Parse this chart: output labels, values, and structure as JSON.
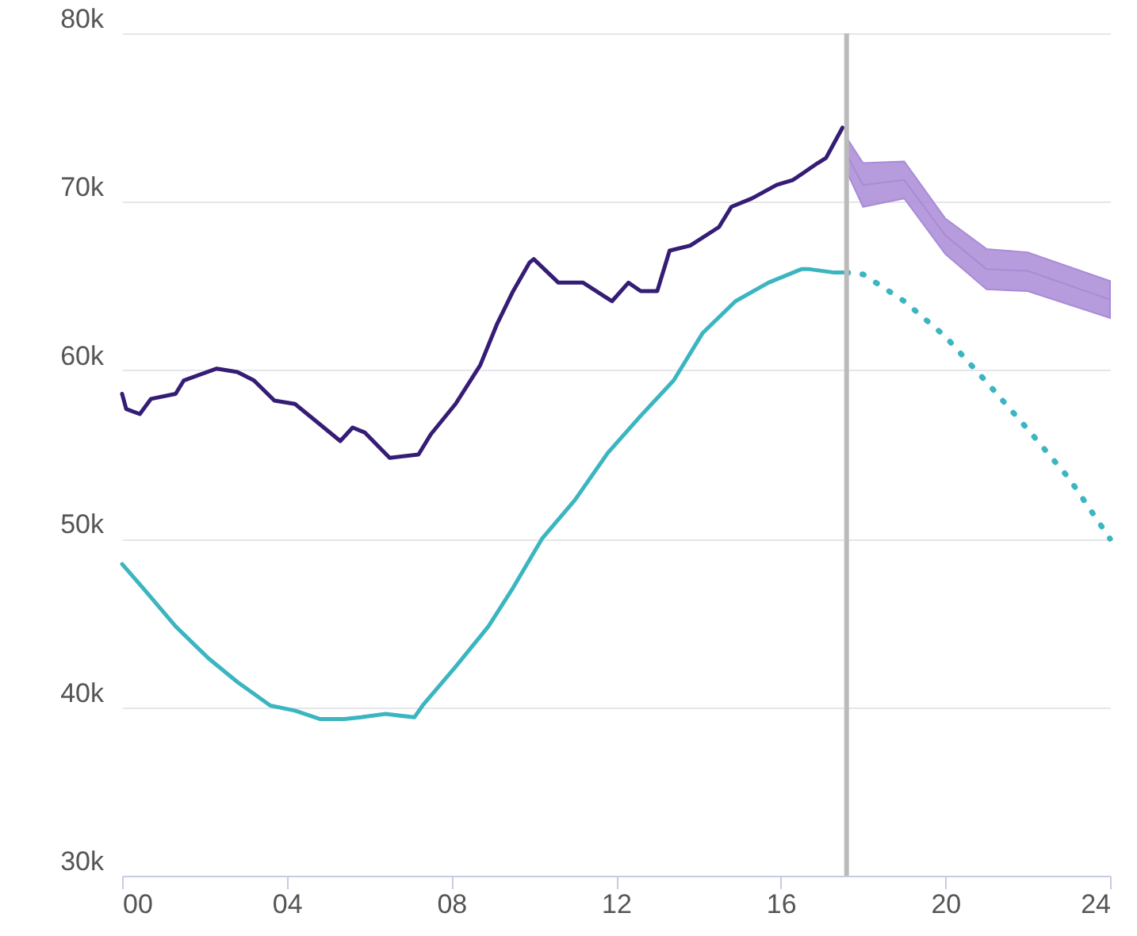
{
  "chart_data": {
    "type": "line",
    "xlim": [
      0,
      24
    ],
    "xticks": [
      {
        "value": 0,
        "label": "00"
      },
      {
        "value": 4,
        "label": "04"
      },
      {
        "value": 8,
        "label": "08"
      },
      {
        "value": 12,
        "label": "12"
      },
      {
        "value": 16,
        "label": "16"
      },
      {
        "value": 20,
        "label": "20"
      },
      {
        "value": 24,
        "label": "24"
      }
    ],
    "ylim": [
      30000,
      80000
    ],
    "yticks": [
      {
        "value": 30000,
        "label": "30k"
      },
      {
        "value": 40000,
        "label": "40k"
      },
      {
        "value": 50000,
        "label": "50k"
      },
      {
        "value": 60000,
        "label": "60k"
      },
      {
        "value": 70000,
        "label": "70k"
      },
      {
        "value": 80000,
        "label": "80k"
      }
    ],
    "grid": "y",
    "marker": "none",
    "ref_lines": [
      {
        "axis": "x",
        "value": 17.6,
        "color": "#bbbbbb"
      }
    ],
    "series": [
      {
        "color": "#351c75",
        "line_style": "solid",
        "x": [
          0,
          0.1,
          0.43,
          0.7,
          1.3,
          1.5,
          2.3,
          2.8,
          3.2,
          3.7,
          4.2,
          4.6,
          5.3,
          5.6,
          5.9,
          6.5,
          7.2,
          7.5,
          8.1,
          8.7,
          9.1,
          9.5,
          9.9,
          10.0,
          10.6,
          11.2,
          11.9,
          12.3,
          12.6,
          13.0,
          13.3,
          13.8,
          14.5,
          14.8,
          15.3,
          15.9,
          16.3,
          16.9,
          17.1,
          17.3,
          17.5
        ],
        "values": [
          58600,
          57700,
          57400,
          58300,
          58600,
          59400,
          60100,
          59900,
          59400,
          58200,
          58000,
          57200,
          55800,
          56600,
          56300,
          54800,
          55000,
          56200,
          58000,
          60300,
          62700,
          64700,
          66400,
          66600,
          65200,
          65200,
          64100,
          65200,
          64700,
          64700,
          67100,
          67400,
          68500,
          69700,
          70200,
          71000,
          71300,
          72300,
          72600,
          73500,
          74400
        ]
      },
      {
        "color": "#3bb5c0",
        "line_style": "solid",
        "x": [
          0,
          0.5,
          1.3,
          2.1,
          2.8,
          3.6,
          4.2,
          4.8,
          5.4,
          5.8,
          6.4,
          7.1,
          7.3,
          8.1,
          8.9,
          9.5,
          10.2,
          11.0,
          11.8,
          12.6,
          13.4,
          14.1,
          14.9,
          15.7,
          16.5,
          16.7,
          17.3,
          17.6
        ],
        "values": [
          48500,
          47100,
          44800,
          42900,
          41500,
          40100,
          39800,
          39300,
          39300,
          39400,
          39600,
          39400,
          40100,
          42400,
          44800,
          47100,
          50000,
          52300,
          55100,
          57300,
          59400,
          62200,
          64100,
          65200,
          66000,
          66000,
          65800,
          65800
        ]
      },
      {
        "color": "#3bb5c0",
        "line_style": "dotted",
        "x": [
          17.6,
          18,
          19,
          20,
          21,
          22,
          23,
          24
        ],
        "values": [
          65800,
          65700,
          64100,
          62000,
          59300,
          56500,
          53600,
          50000
        ]
      },
      {
        "color": "#a98bd6",
        "x": [
          17.6,
          18,
          19,
          20,
          21,
          22,
          24
        ],
        "values": [
          72800,
          71000,
          71300,
          68000,
          66000,
          65900,
          64200
        ],
        "lower": [
          71800,
          69700,
          70200,
          66900,
          64800,
          64700,
          63100
        ],
        "upper": [
          73800,
          72300,
          72400,
          69000,
          67200,
          67000,
          65300
        ]
      }
    ]
  }
}
